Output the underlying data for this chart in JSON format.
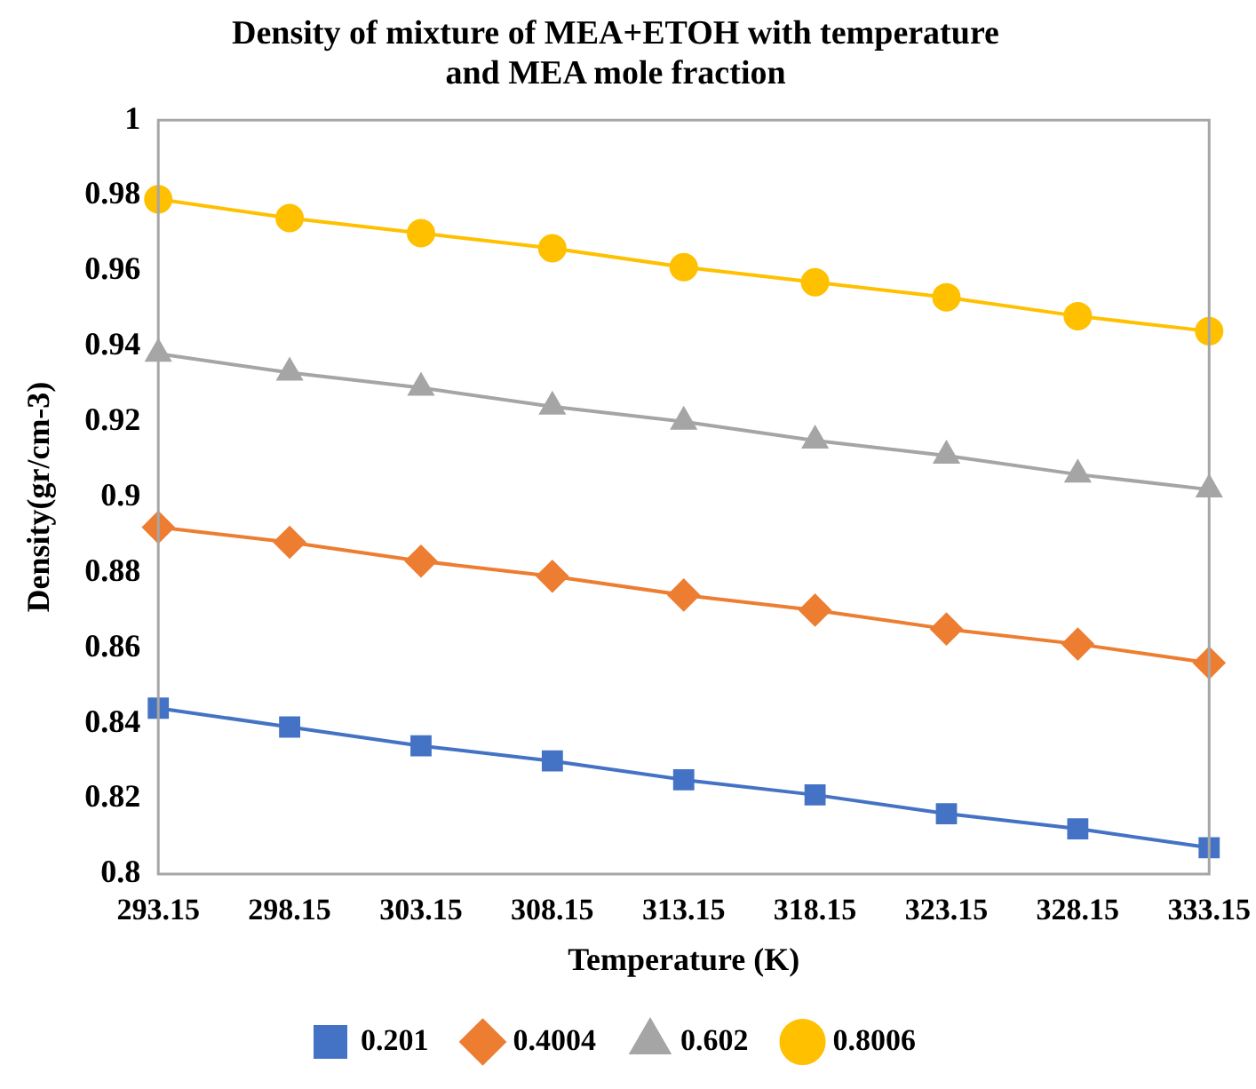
{
  "chart_data": {
    "type": "line",
    "title": [
      "Density of mixture of MEA+ETOH with temperature",
      "and MEA mole fraction"
    ],
    "xlabel": "Temperature (K)",
    "ylabel": "Density(gr/cm-3)",
    "categories": [
      "293.15",
      "298.15",
      "303.15",
      "308.15",
      "313.15",
      "318.15",
      "323.15",
      "328.15",
      "333.15"
    ],
    "series": [
      {
        "name": "0.201",
        "color": "#4472c4",
        "marker": "square",
        "values": [
          0.844,
          0.839,
          0.834,
          0.83,
          0.825,
          0.821,
          0.816,
          0.812,
          0.807
        ]
      },
      {
        "name": "0.4004",
        "color": "#ed7d31",
        "marker": "diamond",
        "values": [
          0.892,
          0.888,
          0.883,
          0.879,
          0.874,
          0.87,
          0.865,
          0.861,
          0.856
        ]
      },
      {
        "name": "0.602",
        "color": "#a5a5a5",
        "marker": "triangle",
        "values": [
          0.938,
          0.933,
          0.929,
          0.924,
          0.92,
          0.915,
          0.911,
          0.906,
          0.902
        ]
      },
      {
        "name": "0.8006",
        "color": "#ffc000",
        "marker": "circle",
        "values": [
          0.979,
          0.974,
          0.97,
          0.966,
          0.961,
          0.957,
          0.953,
          0.948,
          0.944
        ]
      }
    ],
    "ylim": [
      0.8,
      1
    ],
    "yticks": [
      0.8,
      0.82,
      0.84,
      0.86,
      0.88,
      0.9,
      0.92,
      0.94,
      0.96,
      0.98,
      1
    ],
    "grid": false,
    "legend": "bottom",
    "line_style": "solid"
  }
}
